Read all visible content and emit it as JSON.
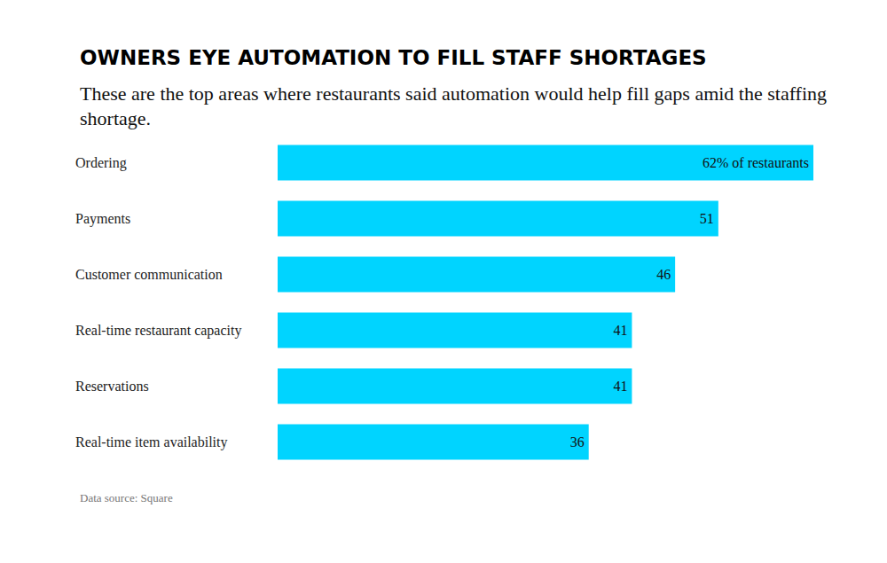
{
  "chart_data": {
    "type": "bar",
    "orientation": "horizontal",
    "title": "OWNERS EYE AUTOMATION TO FILL STAFF SHORTAGES",
    "subtitle": "These are the top areas where restaurants said automation would help fill gaps amid the staffing shortage.",
    "source": "Data source: Square",
    "categories": [
      "Ordering",
      "Payments",
      "Customer communication",
      "Real-time restaurant capacity",
      "Reservations",
      "Real-time item availability"
    ],
    "values": [
      62,
      51,
      46,
      41,
      41,
      36
    ],
    "value_labels": [
      "62% of restaurants",
      "51",
      "46",
      "41",
      "41",
      "36"
    ],
    "color": "#00d4ff",
    "xlim": [
      0,
      62
    ],
    "grid": false,
    "data_labels": true,
    "tick_labels": "y"
  }
}
